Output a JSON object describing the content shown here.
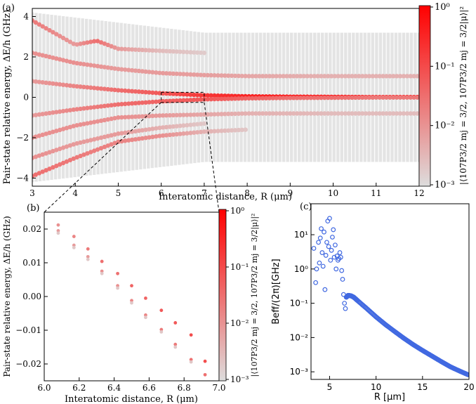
{
  "chart_data": [
    {
      "panel": "(a)",
      "type": "scatter",
      "xlabel": "Interatomic distance, R (μm)",
      "ylabel": "Pair-state relative energy, ΔE/h (GHz)",
      "xlim": [
        3,
        12
      ],
      "ylim": [
        -4.4,
        4.4
      ],
      "xticks": [
        "3",
        "4",
        "5",
        "6",
        "7",
        "8",
        "9",
        "10",
        "11",
        "12"
      ],
      "yticks": [
        "−4",
        "−2",
        "0",
        "2",
        "4"
      ],
      "colorbar": {
        "label": "|⟨107P3/2 mj = 3/2, 107P3/2 mj = 3/2|μ⟩|²",
        "scale": "log",
        "range": [
          0.001,
          1
        ],
        "ticks": [
          "10⁰",
          "10⁻¹",
          "10⁻²",
          "10⁻³"
        ],
        "colors": [
          "#dddddd",
          "#ff0000"
        ]
      },
      "inset_box": {
        "x": [
          6.0,
          7.0
        ],
        "y": [
          -0.025,
          0.025
        ]
      },
      "series": [
        {
          "branch": "central",
          "points": [
            [
              3.0,
              0.8,
              0.3
            ],
            [
              4.0,
              0.55,
              0.4
            ],
            [
              5.0,
              0.35,
              0.5
            ],
            [
              6.0,
              0.2,
              0.6
            ],
            [
              7.0,
              0.1,
              0.75
            ],
            [
              8.0,
              0.05,
              0.85
            ],
            [
              9.0,
              0.03,
              0.9
            ],
            [
              10.0,
              0.02,
              0.95
            ],
            [
              11.0,
              0.01,
              0.97
            ],
            [
              12.0,
              0.01,
              1.0
            ]
          ]
        },
        {
          "branch": "central-lower",
          "points": [
            [
              3.0,
              -0.9,
              0.3
            ],
            [
              4.0,
              -0.6,
              0.4
            ],
            [
              5.0,
              -0.35,
              0.5
            ],
            [
              6.0,
              -0.2,
              0.55
            ],
            [
              7.0,
              -0.1,
              0.6
            ],
            [
              8.0,
              -0.05,
              0.55
            ],
            [
              9.0,
              -0.03,
              0.5
            ],
            [
              10.0,
              -0.02,
              0.5
            ],
            [
              11.0,
              -0.01,
              0.45
            ],
            [
              12.0,
              -0.01,
              0.45
            ]
          ]
        },
        {
          "branch": "upper",
          "points": [
            [
              3.0,
              2.2,
              0.35
            ],
            [
              4.0,
              1.7,
              0.35
            ],
            [
              5.0,
              1.4,
              0.3
            ],
            [
              6.0,
              1.2,
              0.3
            ],
            [
              7.0,
              1.1,
              0.28
            ],
            [
              8.0,
              1.05,
              0.25
            ],
            [
              9.0,
              1.05,
              0.22
            ],
            [
              10.0,
              1.05,
              0.2
            ],
            [
              11.0,
              1.05,
              0.2
            ],
            [
              12.0,
              1.05,
              0.2
            ]
          ]
        },
        {
          "branch": "upper-2",
          "points": [
            [
              3.0,
              3.8,
              0.45
            ],
            [
              4.0,
              2.6,
              0.3
            ],
            [
              4.5,
              2.8,
              0.5
            ],
            [
              5.0,
              2.4,
              0.3
            ],
            [
              6.0,
              2.3,
              0.15
            ],
            [
              7.0,
              2.2,
              0.08
            ]
          ]
        },
        {
          "branch": "lower",
          "points": [
            [
              3.0,
              -2.0,
              0.35
            ],
            [
              4.0,
              -1.4,
              0.35
            ],
            [
              5.0,
              -1.0,
              0.35
            ],
            [
              6.0,
              -0.9,
              0.3
            ],
            [
              7.0,
              -0.85,
              0.25
            ],
            [
              8.0,
              -0.8,
              0.2
            ],
            [
              9.0,
              -0.8,
              0.18
            ],
            [
              10.0,
              -0.8,
              0.15
            ],
            [
              11.0,
              -0.8,
              0.15
            ],
            [
              12.0,
              -0.8,
              0.15
            ]
          ]
        },
        {
          "branch": "lower-2",
          "points": [
            [
              3.0,
              -3.9,
              0.5
            ],
            [
              4.0,
              -3.0,
              0.45
            ],
            [
              5.0,
              -2.2,
              0.4
            ],
            [
              6.0,
              -1.9,
              0.35
            ],
            [
              7.0,
              -1.7,
              0.2
            ],
            [
              8.0,
              -1.6,
              0.1
            ]
          ]
        },
        {
          "branch": "lower-3",
          "points": [
            [
              3.0,
              -3.0,
              0.35
            ],
            [
              4.0,
              -2.3,
              0.3
            ],
            [
              5.0,
              -1.8,
              0.3
            ],
            [
              6.0,
              -1.5,
              0.2
            ],
            [
              7.0,
              -1.3,
              0.1
            ]
          ]
        }
      ]
    },
    {
      "panel": "(b)",
      "type": "scatter",
      "xlabel": "Interatomic distance, R (μm)",
      "ylabel": "Pair-state relative energy, ΔE/h (GHz)",
      "xlim": [
        6.0,
        7.0
      ],
      "ylim": [
        -0.025,
        0.025
      ],
      "xticks": [
        "6.0",
        "6.2",
        "6.4",
        "6.6",
        "6.8",
        "7.0"
      ],
      "yticks": [
        "0.02",
        "0.01",
        "0.00",
        "−0.01",
        "−0.02"
      ],
      "colorbar": {
        "label": "|⟨107P3/2 mj = 3/2, 107P3/2 mj = 3/2|μ⟩|²",
        "scale": "log",
        "range": [
          0.001,
          1
        ],
        "ticks": [
          "10⁰",
          "10⁻¹",
          "10⁻²",
          "10⁻³"
        ],
        "colors": [
          "#dddddd",
          "#ff0000"
        ]
      },
      "series": [
        {
          "branch": "upper",
          "points": [
            [
              6.08,
              0.0212,
              0.35
            ],
            [
              6.17,
              0.0178,
              0.4
            ],
            [
              6.25,
              0.0141,
              0.45
            ],
            [
              6.33,
              0.0104,
              0.5
            ],
            [
              6.42,
              0.0068,
              0.5
            ],
            [
              6.5,
              0.0032,
              0.55
            ],
            [
              6.58,
              -0.0005,
              0.55
            ],
            [
              6.67,
              -0.0041,
              0.6
            ],
            [
              6.75,
              -0.0078,
              0.6
            ],
            [
              6.84,
              -0.0114,
              0.65
            ],
            [
              6.92,
              -0.0192,
              0.65
            ]
          ]
        },
        {
          "branch": "lower",
          "points": [
            [
              6.08,
              0.0195,
              0.3
            ],
            [
              6.17,
              0.0152,
              0.3
            ],
            [
              6.25,
              0.0118,
              0.3
            ],
            [
              6.33,
              0.0075,
              0.35
            ],
            [
              6.42,
              0.0032,
              0.35
            ],
            [
              6.5,
              -0.0012,
              0.4
            ],
            [
              6.58,
              -0.0055,
              0.4
            ],
            [
              6.67,
              -0.0098,
              0.45
            ],
            [
              6.75,
              -0.0142,
              0.45
            ],
            [
              6.84,
              -0.0187,
              0.5
            ],
            [
              6.92,
              -0.0232,
              0.5
            ]
          ]
        },
        {
          "branch": "faint",
          "points": [
            [
              6.08,
              0.0188,
              0.1
            ],
            [
              6.17,
              0.0145,
              0.1
            ],
            [
              6.25,
              0.011,
              0.1
            ],
            [
              6.33,
              0.0068,
              0.1
            ],
            [
              6.42,
              0.0025,
              0.1
            ],
            [
              6.5,
              -0.0019,
              0.1
            ],
            [
              6.58,
              -0.0062,
              0.1
            ],
            [
              6.67,
              -0.0105,
              0.1
            ],
            [
              6.75,
              -0.015,
              0.1
            ],
            [
              6.84,
              -0.0194,
              0.1
            ]
          ]
        }
      ]
    },
    {
      "panel": "(c)",
      "type": "scatter",
      "xlabel": "R [μm]",
      "ylabel": "Beff/(2π)[GHz]",
      "xlim": [
        3,
        20
      ],
      "ylim": [
        0.0006,
        80
      ],
      "yscale": "log",
      "xticks": [
        "5",
        "10",
        "15",
        "20"
      ],
      "yticks": [
        "10¹",
        "10⁰",
        "10⁻¹",
        "10⁻²",
        "10⁻³"
      ],
      "color": "#4169e1",
      "scatter_points": [
        [
          3.3,
          4.0
        ],
        [
          3.5,
          0.4
        ],
        [
          3.6,
          1.0
        ],
        [
          3.8,
          6.0
        ],
        [
          3.9,
          1.5
        ],
        [
          4.0,
          8.0
        ],
        [
          4.1,
          15.0
        ],
        [
          4.2,
          3.0
        ],
        [
          4.3,
          1.2
        ],
        [
          4.4,
          12.0
        ],
        [
          4.5,
          0.25
        ],
        [
          4.6,
          2.5
        ],
        [
          4.7,
          6.0
        ],
        [
          4.8,
          25.0
        ],
        [
          4.9,
          4.5
        ],
        [
          5.0,
          30.0
        ],
        [
          5.1,
          1.8
        ],
        [
          5.2,
          3.5
        ],
        [
          5.3,
          8.5
        ],
        [
          5.4,
          14.0
        ],
        [
          5.5,
          2.2
        ],
        [
          5.6,
          5.0
        ],
        [
          5.7,
          1.0
        ],
        [
          5.8,
          2.4
        ],
        [
          5.9,
          1.8
        ],
        [
          6.0,
          2.0
        ],
        [
          6.1,
          3.0
        ],
        [
          6.2,
          2.2
        ],
        [
          6.3,
          0.9
        ],
        [
          6.4,
          0.5
        ],
        [
          6.5,
          0.18
        ],
        [
          6.6,
          0.1
        ],
        [
          6.7,
          0.07
        ]
      ],
      "curve_points": [
        [
          6.8,
          0.15
        ],
        [
          7.0,
          0.17
        ],
        [
          7.3,
          0.165
        ],
        [
          7.6,
          0.15
        ],
        [
          8.0,
          0.12
        ],
        [
          9.0,
          0.07
        ],
        [
          10.0,
          0.04
        ],
        [
          11.0,
          0.024
        ],
        [
          12.0,
          0.015
        ],
        [
          13.0,
          0.0095
        ],
        [
          14.0,
          0.0062
        ],
        [
          15.0,
          0.0042
        ],
        [
          16.0,
          0.0029
        ],
        [
          17.0,
          0.002
        ],
        [
          18.0,
          0.0014
        ],
        [
          19.0,
          0.00105
        ],
        [
          20.0,
          0.0008
        ]
      ]
    }
  ]
}
